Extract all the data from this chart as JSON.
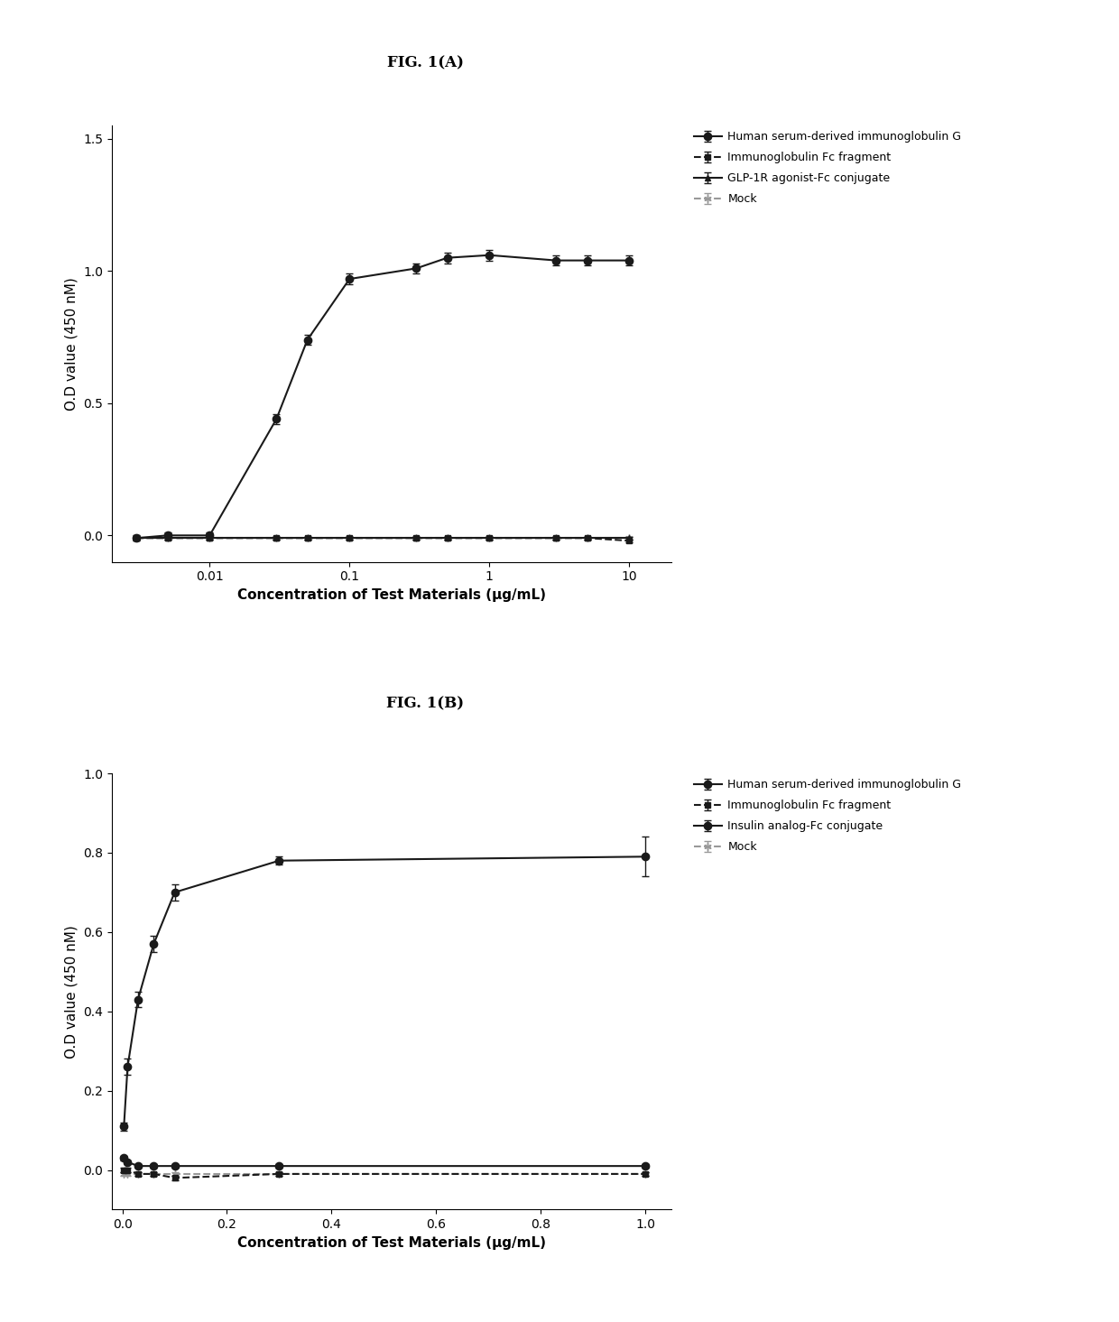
{
  "fig_title_A": "FIG. 1(A)",
  "fig_title_B": "FIG. 1(B)",
  "panel_A": {
    "x_IgG": [
      0.003,
      0.005,
      0.01,
      0.03,
      0.05,
      0.1,
      0.3,
      0.5,
      1.0,
      3.0,
      5.0,
      10.0
    ],
    "y_IgG": [
      -0.01,
      0.0,
      0.0,
      0.44,
      0.74,
      0.97,
      1.01,
      1.05,
      1.06,
      1.04,
      1.04,
      1.04
    ],
    "yerr_IgG": [
      0.01,
      0.01,
      0.01,
      0.02,
      0.02,
      0.02,
      0.02,
      0.02,
      0.02,
      0.02,
      0.02,
      0.02
    ],
    "x_Fc": [
      0.003,
      0.005,
      0.01,
      0.03,
      0.05,
      0.1,
      0.3,
      0.5,
      1.0,
      3.0,
      5.0,
      10.0
    ],
    "y_Fc": [
      -0.01,
      -0.01,
      -0.01,
      -0.01,
      -0.01,
      -0.01,
      -0.01,
      -0.01,
      -0.01,
      -0.01,
      -0.01,
      -0.02
    ],
    "yerr_Fc": [
      0.005,
      0.005,
      0.005,
      0.005,
      0.005,
      0.005,
      0.005,
      0.005,
      0.005,
      0.005,
      0.005,
      0.005
    ],
    "x_GLP": [
      0.003,
      0.005,
      0.01,
      0.03,
      0.05,
      0.1,
      0.3,
      0.5,
      1.0,
      3.0,
      5.0,
      10.0
    ],
    "y_GLP": [
      -0.01,
      -0.01,
      -0.01,
      -0.01,
      -0.01,
      -0.01,
      -0.01,
      -0.01,
      -0.01,
      -0.01,
      -0.01,
      -0.01
    ],
    "yerr_GLP": [
      0.005,
      0.005,
      0.005,
      0.005,
      0.005,
      0.005,
      0.005,
      0.005,
      0.005,
      0.005,
      0.005,
      0.005
    ],
    "x_mock": [
      0.003,
      0.005,
      0.01,
      0.03,
      0.05,
      0.1,
      0.3,
      0.5,
      1.0,
      3.0,
      5.0,
      10.0
    ],
    "y_mock": [
      -0.01,
      -0.01,
      -0.01,
      -0.01,
      -0.01,
      -0.01,
      -0.01,
      -0.01,
      -0.01,
      -0.01,
      -0.01,
      -0.01
    ],
    "yerr_mock": [
      0.005,
      0.005,
      0.005,
      0.005,
      0.005,
      0.005,
      0.005,
      0.005,
      0.005,
      0.005,
      0.005,
      0.005
    ],
    "ylim": [
      -0.1,
      1.55
    ],
    "yticks": [
      0.0,
      0.5,
      1.0,
      1.5
    ],
    "xlabel": "Concentration of Test Materials (μg/mL)",
    "ylabel": "O.D value (450 nM)",
    "legend": [
      "Human serum-derived immunoglobulin G",
      "Immunoglobulin Fc fragment",
      "GLP-1R agonist-Fc conjugate",
      "Mock"
    ]
  },
  "panel_B": {
    "x_IgG": [
      0.003,
      0.01,
      0.03,
      0.06,
      0.1,
      0.3,
      1.0
    ],
    "y_IgG": [
      0.11,
      0.26,
      0.43,
      0.57,
      0.7,
      0.78,
      0.79
    ],
    "yerr_IgG": [
      0.01,
      0.02,
      0.02,
      0.02,
      0.02,
      0.01,
      0.05
    ],
    "x_Fc": [
      0.003,
      0.01,
      0.03,
      0.06,
      0.1,
      0.3,
      1.0
    ],
    "y_Fc": [
      0.0,
      0.0,
      -0.01,
      -0.01,
      -0.02,
      -0.01,
      -0.01
    ],
    "yerr_Fc": [
      0.005,
      0.005,
      0.005,
      0.005,
      0.005,
      0.005,
      0.005
    ],
    "x_insulin": [
      0.003,
      0.01,
      0.03,
      0.06,
      0.1,
      0.3,
      1.0
    ],
    "y_insulin": [
      0.03,
      0.02,
      0.01,
      0.01,
      0.01,
      0.01,
      0.01
    ],
    "yerr_insulin": [
      0.005,
      0.005,
      0.005,
      0.005,
      0.005,
      0.005,
      0.005
    ],
    "x_mock": [
      0.003,
      0.01,
      0.03,
      0.06,
      0.1,
      0.3,
      1.0
    ],
    "y_mock": [
      -0.01,
      -0.01,
      -0.01,
      -0.01,
      -0.01,
      -0.01,
      -0.01
    ],
    "yerr_mock": [
      0.005,
      0.005,
      0.005,
      0.005,
      0.005,
      0.005,
      0.005
    ],
    "ylim": [
      -0.1,
      1.0
    ],
    "yticks": [
      0.0,
      0.2,
      0.4,
      0.6,
      0.8,
      1.0
    ],
    "xlabel": "Concentration of Test Materials (μg/mL)",
    "ylabel": "O.D value (450 nM)",
    "legend": [
      "Human serum-derived immunoglobulin G",
      "Immunoglobulin Fc fragment",
      "Insulin analog-Fc conjugate",
      "Mock"
    ]
  },
  "line_color": "#1a1a1a",
  "mock_color": "#999999",
  "markersize": 6,
  "linewidth": 1.5,
  "capsize": 3,
  "fontsize_title": 12,
  "fontsize_label": 11,
  "fontsize_tick": 10,
  "fontsize_legend": 9
}
